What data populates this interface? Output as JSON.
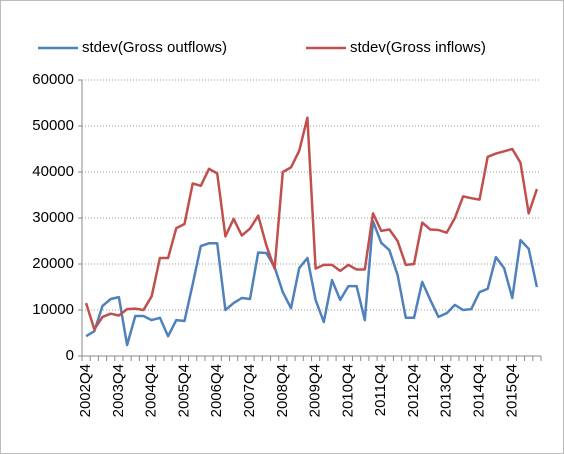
{
  "chart_data": {
    "type": "line",
    "categories": [
      "2002Q4",
      null,
      null,
      null,
      "2003Q4",
      null,
      null,
      null,
      "2004Q4",
      null,
      null,
      null,
      "2005Q4",
      null,
      null,
      null,
      "2006Q4",
      null,
      null,
      null,
      "2007Q4",
      null,
      null,
      null,
      "2008Q4",
      null,
      null,
      null,
      "2009Q4",
      null,
      null,
      null,
      "2010Q4",
      null,
      null,
      null,
      "2011Q4",
      null,
      null,
      null,
      "2012Q4",
      null,
      null,
      null,
      "2013Q4",
      null,
      null,
      null,
      "2014Q4",
      null,
      null,
      null,
      "2015Q4",
      null,
      null,
      null
    ],
    "series": [
      {
        "name": "stdev(Gross outflows)",
        "color": "#4f81bd",
        "values": [
          4300,
          5400,
          10900,
          12400,
          12800,
          2400,
          8700,
          8700,
          7800,
          8300,
          4300,
          7800,
          7600,
          15600,
          23900,
          24500,
          24500,
          10000,
          11500,
          12600,
          12400,
          22500,
          22400,
          19300,
          13900,
          10400,
          19100,
          21300,
          12200,
          7400,
          16500,
          12200,
          15200,
          15200,
          7800,
          29300,
          24600,
          23000,
          17600,
          8300,
          8300,
          16100,
          12200,
          8500,
          9300,
          11100,
          10000,
          10200,
          13900,
          14600,
          21500,
          19100,
          12600,
          25200,
          23300,
          15000
        ]
      },
      {
        "name": "stdev(Gross inflows)",
        "color": "#c0504d",
        "values": [
          11500,
          5800,
          8500,
          9200,
          8800,
          10200,
          10300,
          10000,
          13000,
          21300,
          21300,
          27800,
          28700,
          37500,
          37000,
          40700,
          39700,
          26000,
          29800,
          26200,
          27700,
          30500,
          24000,
          19000,
          40000,
          41000,
          44600,
          51800,
          19000,
          19800,
          19800,
          18500,
          19800,
          18800,
          18800,
          31000,
          27200,
          27500,
          25000,
          19800,
          20000,
          29000,
          27500,
          27400,
          26800,
          30000,
          34700,
          34300,
          34000,
          43300,
          44000,
          44500,
          45000,
          42000,
          31000,
          36300
        ]
      }
    ],
    "ylim": [
      0,
      60000
    ],
    "yticks": [
      0,
      10000,
      20000,
      30000,
      40000,
      50000,
      60000
    ],
    "grid": true,
    "legend": "top"
  }
}
